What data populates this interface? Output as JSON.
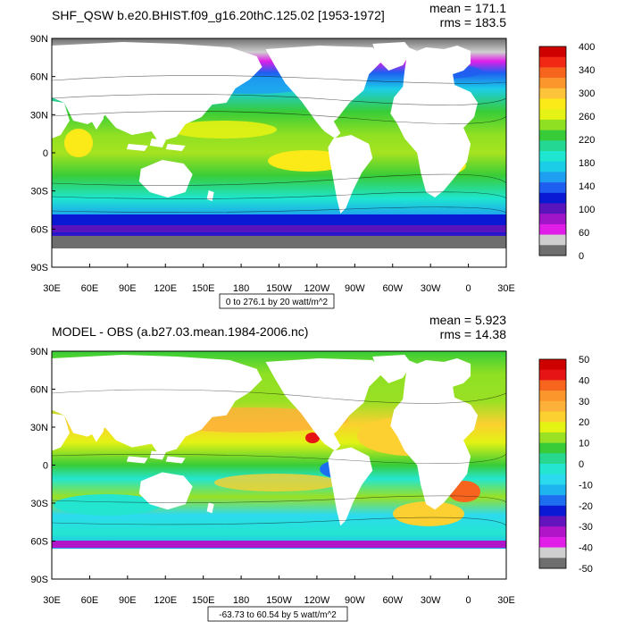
{
  "chart_data": [
    {
      "type": "heatmap",
      "title": "SHF_QSW b.e20.BHIST.f09_g16.20thC.125.02 [1953-1972]",
      "stats": {
        "mean": "mean = 171.1",
        "rms": "rms = 183.5"
      },
      "range_note": "0 to 276.1 by 20 watt/m^2",
      "xlabel": "",
      "ylabel": "",
      "x_ticks": [
        "30E",
        "60E",
        "90E",
        "120E",
        "150E",
        "180",
        "150W",
        "120W",
        "90W",
        "60W",
        "30W",
        "0",
        "30E"
      ],
      "y_ticks": [
        "90N",
        "60N",
        "30N",
        "0",
        "30S",
        "60S",
        "90S"
      ],
      "colorbar": {
        "labels": [
          "400",
          "340",
          "300",
          "260",
          "220",
          "180",
          "140",
          "100",
          "60",
          "0"
        ],
        "colors": [
          "#ce0000",
          "#f02814",
          "#f6641e",
          "#fb962c",
          "#fdc33a",
          "#fbe918",
          "#e4f214",
          "#8fe023",
          "#38cc38",
          "#24d894",
          "#1ee6d0",
          "#1ccde8",
          "#1e9ef0",
          "#1e5ef0",
          "#0a1ad4",
          "#5a14bc",
          "#a015c8",
          "#e01ee8",
          "#cfcfcf",
          "#6e6e6e"
        ]
      }
    },
    {
      "type": "heatmap",
      "title": "MODEL - OBS (a.b27.03.mean.1984-2006.nc)",
      "stats": {
        "mean": "mean = 5.923",
        "rms": "rms = 14.38"
      },
      "range_note": "-63.73 to 60.54 by 5 watt/m^2",
      "xlabel": "",
      "ylabel": "",
      "x_ticks": [
        "30E",
        "60E",
        "90E",
        "120E",
        "150E",
        "180",
        "150W",
        "120W",
        "90W",
        "60W",
        "30W",
        "0",
        "30E"
      ],
      "y_ticks": [
        "90N",
        "60N",
        "30N",
        "0",
        "30S",
        "60S",
        "90S"
      ],
      "colorbar": {
        "labels": [
          "50",
          "40",
          "30",
          "20",
          "10",
          "0",
          "-10",
          "-20",
          "-30",
          "-40",
          "-50"
        ],
        "colors": [
          "#ce0000",
          "#e61414",
          "#f6641e",
          "#fb962c",
          "#fdb03a",
          "#fbd030",
          "#e4f214",
          "#9ae024",
          "#38cc38",
          "#28d890",
          "#24e6d0",
          "#2cdaf0",
          "#1eb4f0",
          "#1e6ef0",
          "#0a1ad4",
          "#6414bc",
          "#b015c8",
          "#e01ee8",
          "#cfcfcf",
          "#6e6e6e"
        ]
      }
    }
  ],
  "palette": {
    "land": "#ffffff",
    "contour": "#000000"
  }
}
